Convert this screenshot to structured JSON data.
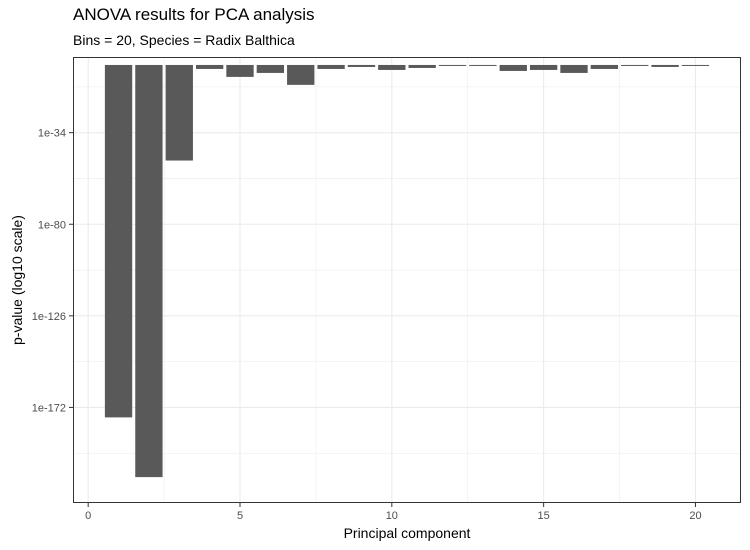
{
  "chart_data": {
    "type": "bar",
    "title": "ANOVA results for PCA analysis",
    "subtitle": "Bins = 20, Species = Radix Balthica",
    "xlabel": "Principal component",
    "ylabel": "p-value (log10 scale)",
    "x_ticks": [
      "0",
      "5",
      "10",
      "15",
      "20"
    ],
    "y_ticks": [
      "1e-34",
      "1e-80",
      "1e-126",
      "1e-172"
    ],
    "y_tick_exponents": [
      -34,
      -80,
      -126,
      -172
    ],
    "x": [
      1,
      2,
      3,
      4,
      5,
      6,
      7,
      8,
      9,
      10,
      11,
      12,
      13,
      14,
      15,
      16,
      17,
      18,
      19,
      20
    ],
    "log10_p": [
      -177,
      -207,
      -48,
      -2,
      -6,
      -4,
      -10,
      -2,
      -1,
      -2.5,
      -1.5,
      -0.5,
      0,
      -3,
      -2.5,
      -4,
      -2,
      -0.5,
      -1,
      -0.5
    ],
    "xlim": [
      -0.5,
      21.5
    ],
    "ylim_log10": [
      -220,
      4
    ],
    "grid": true,
    "bar_color": "#595959"
  }
}
